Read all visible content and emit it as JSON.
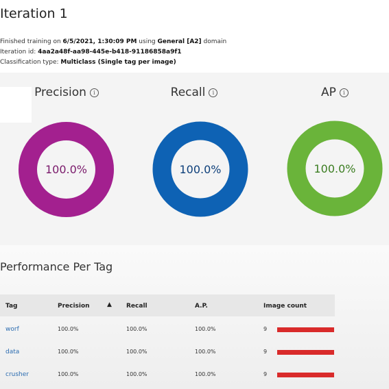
{
  "header": {
    "title": "Iteration 1",
    "finished_prefix": "Finished training on ",
    "finished_date": "6/5/2021, 1:30:09 PM",
    "finished_mid": " using ",
    "domain_name": "General [A2]",
    "finished_suffix": " domain",
    "iteration_label": "Iteration id: ",
    "iteration_id": "4aa2a48f-aa98-445e-b418-91186858a9f1",
    "classification_label": "Classification type: ",
    "classification_value": "Multiclass (Single tag per image)"
  },
  "metrics": [
    {
      "label": "Precision",
      "value": "100.0%",
      "percent": 100,
      "color": "#a3208f",
      "text_color": "#7a1a6b"
    },
    {
      "label": "Recall",
      "value": "100.0%",
      "percent": 100,
      "color": "#0e62b4",
      "text_color": "#0d3f7a"
    },
    {
      "label": "AP",
      "value": "100.0%",
      "percent": 100,
      "color": "#6ab43a",
      "text_color": "#3b7d21"
    }
  ],
  "info_glyph": "i",
  "performance": {
    "title": "Performance Per Tag",
    "columns": [
      "Tag",
      "Precision",
      "Recall",
      "A.P.",
      "Image count"
    ],
    "sort_indicator": "▲",
    "rows": [
      {
        "tag": "worf",
        "precision": "100.0%",
        "recall": "100.0%",
        "ap": "100.0%",
        "count": "9",
        "count_fraction": 1.0
      },
      {
        "tag": "data",
        "precision": "100.0%",
        "recall": "100.0%",
        "ap": "100.0%",
        "count": "9",
        "count_fraction": 1.0
      },
      {
        "tag": "crusher",
        "precision": "100.0%",
        "recall": "100.0%",
        "ap": "100.0%",
        "count": "9",
        "count_fraction": 1.0
      }
    ],
    "bar_color": "#d92b2b"
  }
}
